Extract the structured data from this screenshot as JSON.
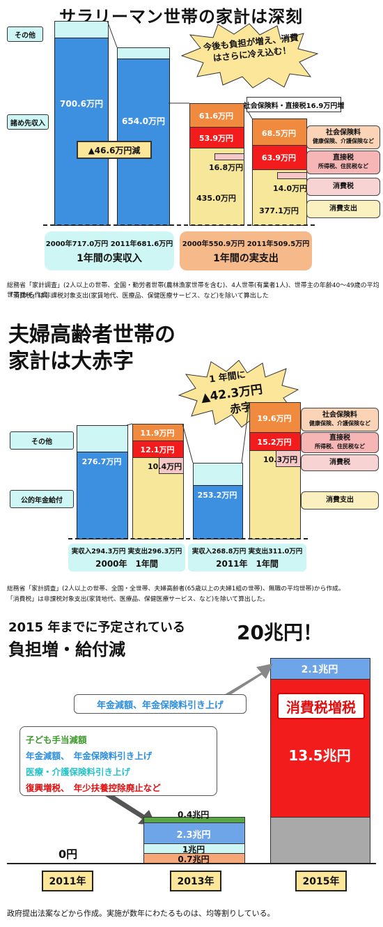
{
  "p1": {
    "title": "サラリーマン世帯の家計は深刻",
    "burst": "今後も負担が増え、消費はさらに冷え込む！",
    "label_other": "その他",
    "label_takehome": "諸め先収入",
    "income_2000": "700.6万円",
    "income_2011": "654.0万円",
    "decrease": "▲46.6万円減",
    "social_increase": "社会保険料・直接税16.9万円増",
    "exp2000_social": "61.6万円",
    "exp2000_direct": "53.9万円",
    "exp2000_tax": "16.8万円",
    "exp2000_consume": "435.0万円",
    "exp2011_social": "68.5万円",
    "exp2011_direct": "63.9万円",
    "exp2011_tax": "14.0万円",
    "exp2011_consume": "377.1万円",
    "legend_social": "社会保険料",
    "legend_social_sub": "健康保険、介護保険など",
    "legend_direct": "直接税",
    "legend_direct_sub": "所得税、住民税など",
    "legend_tax": "消費税",
    "legend_consume": "消費支出",
    "foot_income_vals": "2000年717.0万円 2011年681.6万円",
    "foot_income_title": "1年間の実収入",
    "foot_exp_vals": "2000年550.9万円 2011年509.5万円",
    "foot_exp_title": "1年間の実支出",
    "note1": "総務省「家計調査」(2人以上の世帯、全国・勤労者世帯(農林漁家世帯を含む)、4人世帯(有業者1人)、世帯主の年齢40～49歳の平均世帯)から作成",
    "note2": "「消費税」は非課税対象支出(家賃地代、医療品、保健医療サービス、など)を除いて算出した"
  },
  "p2": {
    "title1": "夫婦高齢者世帯の",
    "title2": "家計は大赤字",
    "burst1": "1 年間に",
    "burst2": "▲42.3万円",
    "burst3": "赤字",
    "label_other": "その他",
    "label_pension": "公的年金給付",
    "income_2000": "276.7万円",
    "income_2011": "253.2万円",
    "exp2000_social": "11.9万円",
    "exp2000_direct": "12.1万円",
    "exp2000_tax": "10.4万円",
    "exp2011_social": "19.6万円",
    "exp2011_direct": "15.2万円",
    "exp2011_tax": "10.3万円",
    "legend_social": "社会保険料",
    "legend_social_sub": "健康保険、介護保険など",
    "legend_direct": "直接税",
    "legend_direct_sub": "所得税、住民税など",
    "legend_tax": "消費税",
    "legend_consume": "消費支出",
    "foot2000_vals": "実収入294.3万円 実支出296.3万円",
    "foot2000_year": "2000年　1年間",
    "foot2011_vals": "実収入268.8万円 実支出311.0万円",
    "foot2011_year": "2011年　1年間",
    "note1": "総務省「家計調査」(2人以上の世帯、全国・全世帯、夫婦高齢者(65歳以上の夫婦1組の世帯)、無職の平均世帯)から作成。",
    "note2": "「消費税」は非課税対象支出(家賃地代、医療品、保健医療サービス、など)を除いて算出した。"
  },
  "p3": {
    "title1": "2015 年までに予定されている",
    "title2": "負担増・給付減",
    "total_2015": "20兆円！",
    "callout_pension": "年金減額、年金保険料引き上げ",
    "box_line1": "子ども手当減額",
    "box_line2": "年金減額、　年金保険料引き上げ",
    "box_line3": "医療・介護保険料引き上げ",
    "box_line4": "復興増税、　年少扶養控除廃止など",
    "val_2011": "0円",
    "seg_04": "0.4兆円",
    "seg_23": "2.3兆円",
    "seg_1": "1兆円",
    "seg_07": "0.7兆円",
    "seg_21": "2.1兆円",
    "consumption_tax_hike": "消費税増税",
    "seg_135": "13.5兆円",
    "years": [
      "2011年",
      "2013年",
      "2015年"
    ],
    "note": "政府提出法案などから作成。実施が数年にわたるものは、均等割りしている。"
  },
  "colors": {
    "blue": "#3d8fe0",
    "red": "#f21c1c",
    "orange": "#ef8a3e",
    "cream": "#f7e79b",
    "mint": "#cdf6f4",
    "green": "#5aa845",
    "gray": "#a9a9a9"
  },
  "chart_data": [
    {
      "type": "bar",
      "title": "サラリーマン世帯の家計は深刻",
      "categories": [
        "2000年 実収入",
        "2011年 実収入",
        "2000年 実支出",
        "2011年 実支出"
      ],
      "series": [
        {
          "name": "諸め先収入",
          "values": [
            700.6,
            654.0,
            null,
            null
          ]
        },
        {
          "name": "消費支出",
          "values": [
            null,
            null,
            435.0,
            377.1
          ]
        },
        {
          "name": "消費税",
          "values": [
            null,
            null,
            16.8,
            14.0
          ]
        },
        {
          "name": "直接税",
          "values": [
            null,
            null,
            53.9,
            63.9
          ]
        },
        {
          "name": "社会保険料",
          "values": [
            null,
            null,
            61.6,
            68.5
          ]
        }
      ],
      "totals": [
        717.0,
        681.6,
        550.9,
        509.5
      ]
    },
    {
      "type": "bar",
      "title": "夫婦高齢者世帯の家計は大赤字",
      "categories": [
        "2000年 実収入",
        "2000年 実支出",
        "2011年 実収入",
        "2011年 実支出"
      ],
      "series": [
        {
          "name": "公的年金給付",
          "values": [
            276.7,
            null,
            253.2,
            null
          ]
        },
        {
          "name": "消費税",
          "values": [
            null,
            10.4,
            null,
            10.3
          ]
        },
        {
          "name": "直接税",
          "values": [
            null,
            12.1,
            null,
            15.2
          ]
        },
        {
          "name": "社会保険料",
          "values": [
            null,
            11.9,
            null,
            19.6
          ]
        }
      ],
      "totals": [
        294.3,
        296.3,
        268.8,
        311.0
      ]
    },
    {
      "type": "bar",
      "title": "2015 年までに予定されている負担増・給付減",
      "categories": [
        "2011年",
        "2013年",
        "2015年"
      ],
      "series": [
        {
          "values": [
            0,
            0.7,
            null
          ]
        },
        {
          "values": [
            0,
            1,
            null
          ]
        },
        {
          "values": [
            0,
            2.3,
            2.1
          ]
        },
        {
          "values": [
            0,
            0.4,
            null
          ]
        },
        {
          "name": "消費税増税",
          "values": [
            0,
            null,
            13.5
          ]
        }
      ],
      "totals": [
        0,
        null,
        20
      ]
    }
  ]
}
